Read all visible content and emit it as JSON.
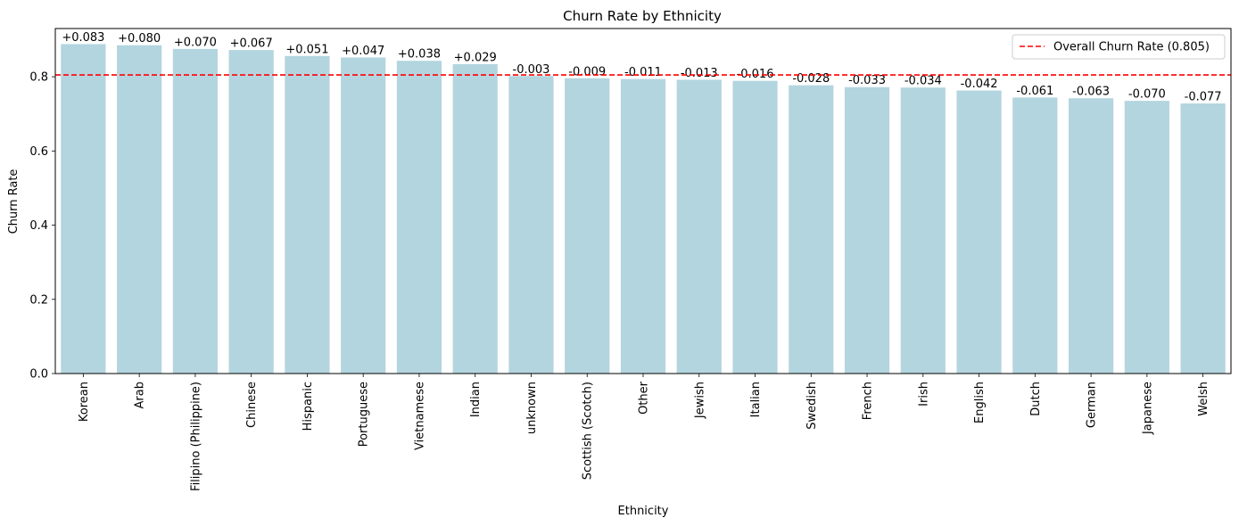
{
  "chart_data": {
    "type": "bar",
    "title": "Churn Rate by Ethnicity",
    "xlabel": "Ethnicity",
    "ylabel": "Churn Rate",
    "ylim": [
      0,
      0.93
    ],
    "yticks": [
      0.0,
      0.2,
      0.4,
      0.6,
      0.8
    ],
    "ytick_labels": [
      "0.0",
      "0.2",
      "0.4",
      "0.6",
      "0.8"
    ],
    "grid": false,
    "bar_color": "#b3d5df",
    "reference_line": {
      "label": "Overall Churn Rate (0.805)",
      "value": 0.805,
      "color": "#ff0000",
      "style": "dashed"
    },
    "legend_position": "top-right",
    "categories": [
      "Korean",
      "Arab",
      "Filipino (Philippine)",
      "Chinese",
      "Hispanic",
      "Portuguese",
      "Vietnamese",
      "Indian",
      "unknown",
      "Scottish (Scotch)",
      "Other",
      "Jewish",
      "Italian",
      "Swedish",
      "French",
      "Irish",
      "English",
      "Dutch",
      "German",
      "Japanese",
      "Welsh"
    ],
    "values": [
      0.888,
      0.885,
      0.875,
      0.872,
      0.856,
      0.852,
      0.843,
      0.834,
      0.802,
      0.796,
      0.794,
      0.792,
      0.789,
      0.777,
      0.772,
      0.771,
      0.763,
      0.744,
      0.742,
      0.735,
      0.728
    ],
    "bar_labels": [
      "+0.083",
      "+0.080",
      "+0.070",
      "+0.067",
      "+0.051",
      "+0.047",
      "+0.038",
      "+0.029",
      "-0.003",
      "-0.009",
      "-0.011",
      "-0.013",
      "-0.016",
      "-0.028",
      "-0.033",
      "-0.034",
      "-0.042",
      "-0.061",
      "-0.063",
      "-0.070",
      "-0.077"
    ]
  }
}
